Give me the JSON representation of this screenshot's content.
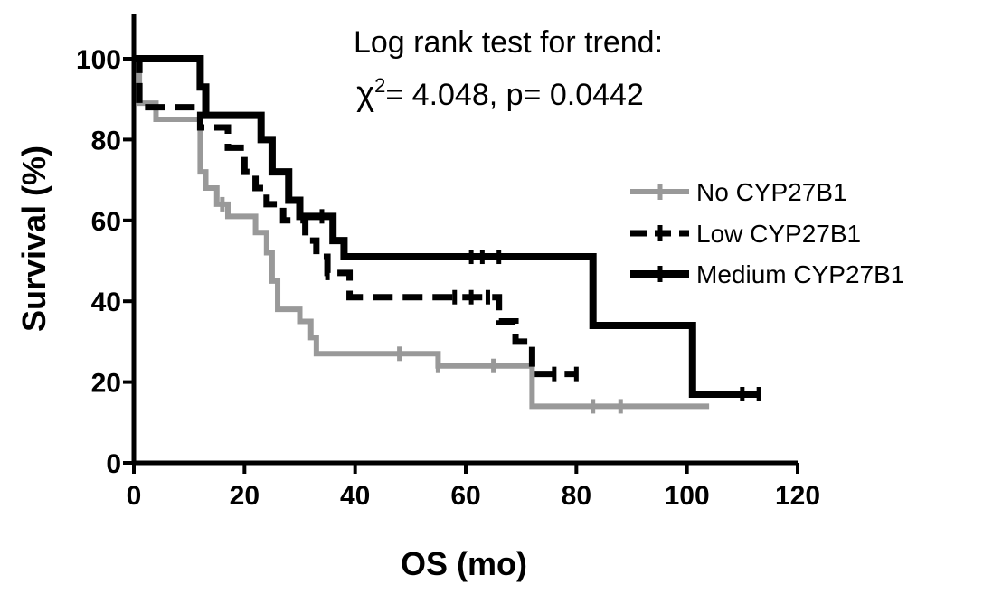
{
  "chart_data": {
    "type": "line",
    "subtype": "kaplan-meier",
    "title": "",
    "xlabel": "OS (mo)",
    "ylabel": "Survival (%)",
    "xlim": [
      0,
      120
    ],
    "ylim": [
      0,
      100
    ],
    "xticks": [
      0,
      20,
      40,
      60,
      80,
      100,
      120
    ],
    "yticks": [
      0,
      20,
      40,
      60,
      80,
      100
    ],
    "grid": false,
    "legend_position": "right",
    "annotation": {
      "line1": "Log rank test for trend:",
      "chi_symbol": "χ",
      "chi_sup": "2",
      "stat": "= 4.048,  p= 0.0442"
    },
    "series": [
      {
        "name": "No CYP27B1",
        "color": "#999999",
        "dash": "solid",
        "steps": [
          [
            0,
            100
          ],
          [
            1,
            89
          ],
          [
            4,
            85
          ],
          [
            12,
            72
          ],
          [
            13,
            68
          ],
          [
            15,
            64
          ],
          [
            17,
            61
          ],
          [
            22,
            57
          ],
          [
            24,
            52
          ],
          [
            25,
            45
          ],
          [
            26,
            38
          ],
          [
            30,
            35
          ],
          [
            32,
            31
          ],
          [
            33,
            27
          ],
          [
            55,
            24
          ],
          [
            72,
            14
          ],
          [
            104,
            14
          ]
        ],
        "censored": [
          [
            16,
            64
          ],
          [
            48,
            27
          ],
          [
            55,
            24
          ],
          [
            65,
            24
          ],
          [
            72,
            24
          ],
          [
            83,
            14
          ],
          [
            88,
            14
          ]
        ]
      },
      {
        "name": "Low CYP27B1",
        "color": "#000000",
        "dash": "dashed",
        "steps": [
          [
            0,
            100
          ],
          [
            1,
            88
          ],
          [
            12,
            83
          ],
          [
            17,
            78
          ],
          [
            20,
            72
          ],
          [
            22,
            68
          ],
          [
            24,
            64
          ],
          [
            27,
            60
          ],
          [
            31,
            55
          ],
          [
            33,
            51
          ],
          [
            35,
            47
          ],
          [
            39,
            41
          ],
          [
            66,
            35
          ],
          [
            69,
            30
          ],
          [
            72,
            22
          ],
          [
            80,
            22
          ]
        ],
        "censored": [
          [
            35,
            47
          ],
          [
            58,
            41
          ],
          [
            61,
            41
          ],
          [
            64,
            41
          ],
          [
            76,
            22
          ],
          [
            80,
            22
          ]
        ]
      },
      {
        "name": "Medium CYP27B1",
        "color": "#000000",
        "dash": "solid",
        "steps": [
          [
            0,
            100
          ],
          [
            12,
            93
          ],
          [
            13,
            86
          ],
          [
            23,
            80
          ],
          [
            25,
            72
          ],
          [
            28,
            65
          ],
          [
            30,
            61
          ],
          [
            36,
            55
          ],
          [
            38,
            51
          ],
          [
            83,
            34
          ],
          [
            101,
            17
          ],
          [
            113,
            17
          ]
        ],
        "censored": [
          [
            34,
            61
          ],
          [
            61,
            51
          ],
          [
            63,
            51
          ],
          [
            66,
            51
          ],
          [
            110,
            17
          ],
          [
            113,
            17
          ]
        ]
      }
    ]
  }
}
